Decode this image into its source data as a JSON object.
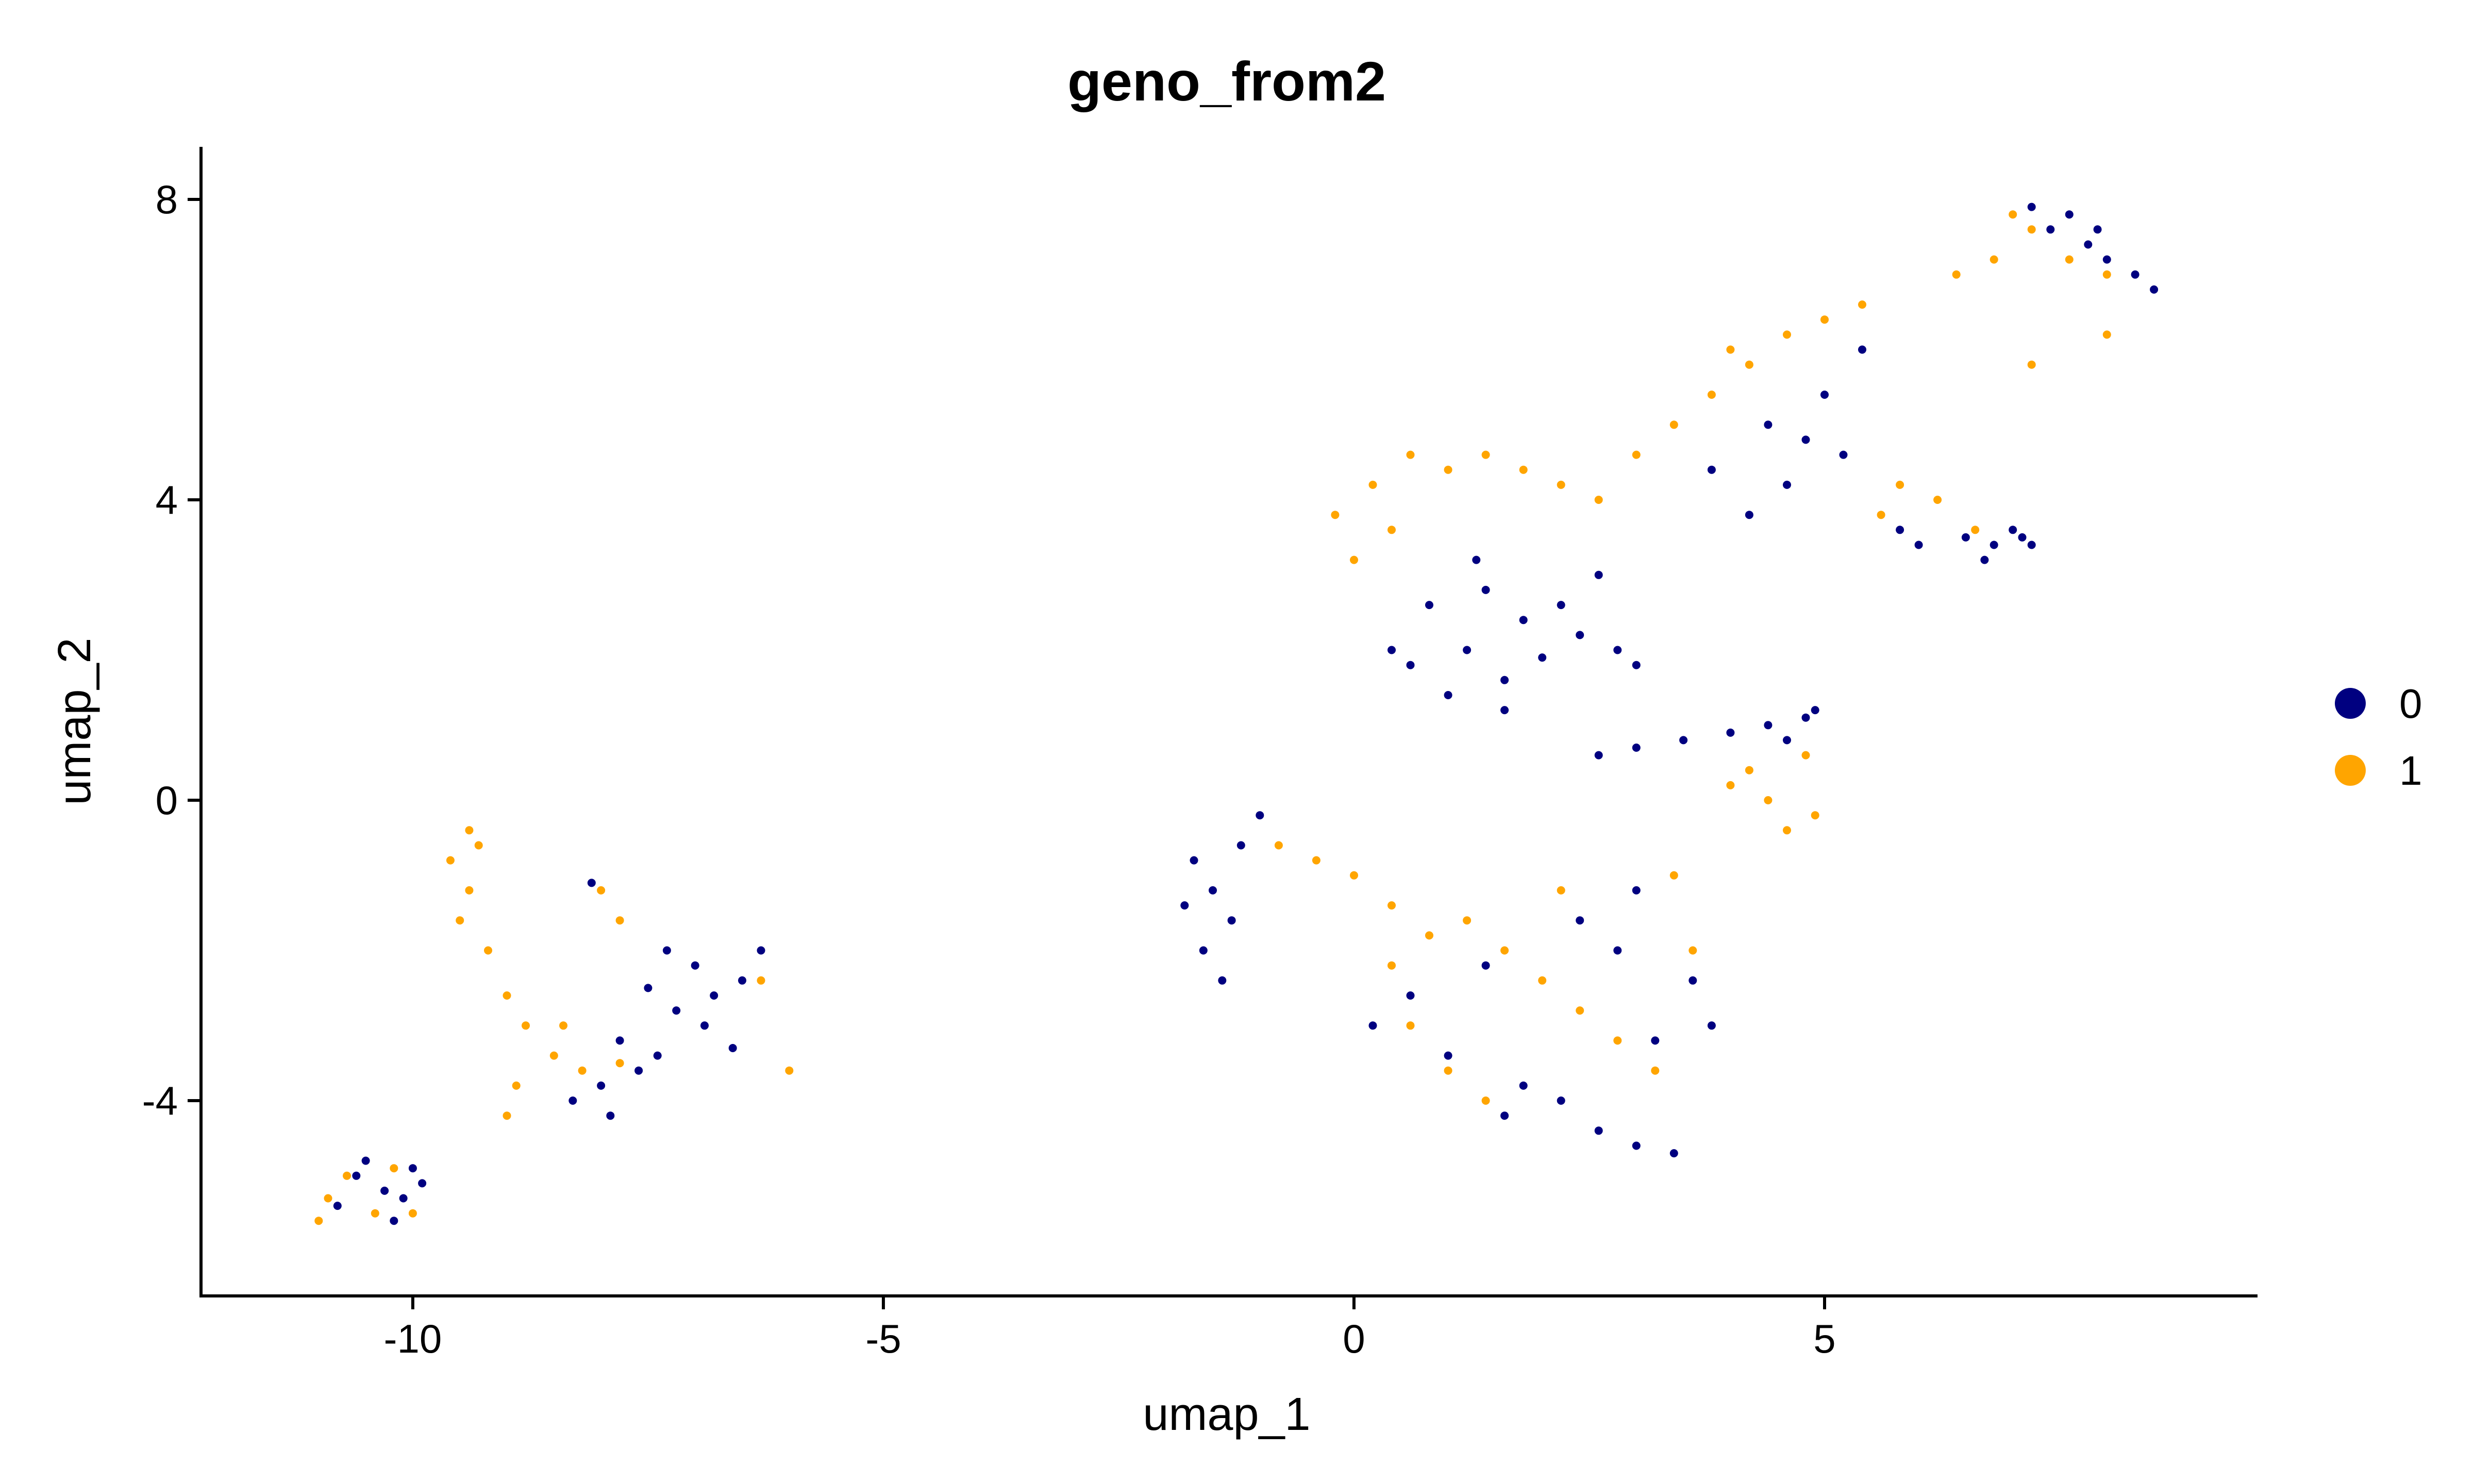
{
  "chart_data": {
    "type": "scatter",
    "title": "geno_from2",
    "xlabel": "umap_1",
    "ylabel": "umap_2",
    "xlim": [
      -12.25,
      9.6
    ],
    "ylim": [
      -6.6,
      8.7
    ],
    "xticks": [
      -10,
      -5,
      0,
      5
    ],
    "xtick_labels": [
      "-10",
      "-5",
      "0",
      "5"
    ],
    "yticks": [
      -4,
      0,
      4,
      8
    ],
    "ytick_labels": [
      "-4",
      "0",
      "4",
      "8"
    ],
    "grid": false,
    "legend_position": "right",
    "series": [
      {
        "name": "0",
        "color": "#000080",
        "points": [
          [
            -10.6,
            -5.0
          ],
          [
            -10.3,
            -5.2
          ],
          [
            -10.0,
            -4.9
          ],
          [
            -10.8,
            -5.4
          ],
          [
            -10.2,
            -5.6
          ],
          [
            -9.9,
            -5.1
          ],
          [
            -10.5,
            -4.8
          ],
          [
            -10.1,
            -5.3
          ],
          [
            -7.5,
            -2.5
          ],
          [
            -7.2,
            -2.8
          ],
          [
            -7.8,
            -3.2
          ],
          [
            -7.0,
            -2.2
          ],
          [
            -6.8,
            -2.6
          ],
          [
            -6.5,
            -2.4
          ],
          [
            -6.3,
            -2.0
          ],
          [
            -7.6,
            -3.6
          ],
          [
            -8.0,
            -3.8
          ],
          [
            -8.3,
            -4.0
          ],
          [
            -7.9,
            -4.2
          ],
          [
            -7.4,
            -3.4
          ],
          [
            -6.9,
            -3.0
          ],
          [
            -6.6,
            -3.3
          ],
          [
            -7.3,
            -2.0
          ],
          [
            -8.1,
            -1.1
          ],
          [
            -1.5,
            -1.2
          ],
          [
            -1.7,
            -0.8
          ],
          [
            -1.3,
            -1.6
          ],
          [
            -1.6,
            -2.0
          ],
          [
            -1.2,
            -0.6
          ],
          [
            -1.0,
            -0.2
          ],
          [
            -1.8,
            -1.4
          ],
          [
            -1.4,
            -2.4
          ],
          [
            0.2,
            -3.0
          ],
          [
            0.6,
            -2.6
          ],
          [
            1.0,
            -3.4
          ],
          [
            1.4,
            -2.2
          ],
          [
            1.8,
            -3.8
          ],
          [
            2.2,
            -4.0
          ],
          [
            2.6,
            -4.4
          ],
          [
            3.0,
            -4.6
          ],
          [
            3.4,
            -4.7
          ],
          [
            3.2,
            -3.2
          ],
          [
            3.6,
            -2.4
          ],
          [
            3.8,
            -3.0
          ],
          [
            2.8,
            -2.0
          ],
          [
            2.4,
            -1.6
          ],
          [
            3.0,
            -1.2
          ],
          [
            1.6,
            -4.2
          ],
          [
            0.8,
            2.6
          ],
          [
            1.2,
            2.0
          ],
          [
            1.6,
            1.6
          ],
          [
            2.0,
            1.9
          ],
          [
            2.4,
            2.2
          ],
          [
            0.4,
            2.0
          ],
          [
            1.0,
            1.4
          ],
          [
            2.8,
            2.0
          ],
          [
            1.4,
            2.8
          ],
          [
            2.2,
            2.6
          ],
          [
            3.0,
            1.8
          ],
          [
            0.6,
            1.8
          ],
          [
            1.8,
            2.4
          ],
          [
            1.3,
            3.2
          ],
          [
            2.6,
            3.0
          ],
          [
            1.6,
            1.2
          ],
          [
            3.0,
            0.7
          ],
          [
            3.5,
            0.8
          ],
          [
            4.0,
            0.9
          ],
          [
            4.4,
            1.0
          ],
          [
            4.8,
            1.1
          ],
          [
            4.9,
            1.2
          ],
          [
            4.6,
            0.8
          ],
          [
            2.6,
            0.6
          ],
          [
            4.2,
            3.8
          ],
          [
            4.6,
            4.2
          ],
          [
            4.8,
            4.8
          ],
          [
            4.4,
            5.0
          ],
          [
            5.0,
            5.4
          ],
          [
            5.2,
            4.6
          ],
          [
            3.8,
            4.4
          ],
          [
            5.4,
            6.0
          ],
          [
            6.5,
            3.5
          ],
          [
            6.8,
            3.4
          ],
          [
            7.0,
            3.6
          ],
          [
            6.7,
            3.2
          ],
          [
            7.1,
            3.5
          ],
          [
            5.8,
            3.6
          ],
          [
            6.0,
            3.4
          ],
          [
            7.2,
            3.4
          ],
          [
            7.4,
            7.6
          ],
          [
            7.8,
            7.4
          ],
          [
            8.0,
            7.2
          ],
          [
            7.6,
            7.8
          ],
          [
            8.3,
            7.0
          ],
          [
            8.5,
            6.8
          ],
          [
            7.2,
            7.9
          ],
          [
            7.9,
            7.6
          ]
        ]
      },
      {
        "name": "1",
        "color": "#FFA500",
        "points": [
          [
            -10.9,
            -5.3
          ],
          [
            -10.4,
            -5.5
          ],
          [
            -10.7,
            -5.0
          ],
          [
            -10.0,
            -5.5
          ],
          [
            -11.0,
            -5.6
          ],
          [
            -10.2,
            -4.9
          ],
          [
            -9.6,
            -0.8
          ],
          [
            -9.4,
            -1.2
          ],
          [
            -9.3,
            -0.6
          ],
          [
            -9.5,
            -1.6
          ],
          [
            -9.2,
            -2.0
          ],
          [
            -9.0,
            -2.6
          ],
          [
            -8.8,
            -3.0
          ],
          [
            -8.5,
            -3.4
          ],
          [
            -8.4,
            -3.0
          ],
          [
            -8.2,
            -3.6
          ],
          [
            -8.9,
            -3.8
          ],
          [
            -7.8,
            -3.5
          ],
          [
            -8.0,
            -1.2
          ],
          [
            -7.8,
            -1.6
          ],
          [
            -9.4,
            -0.4
          ],
          [
            -9.0,
            -4.2
          ],
          [
            -6.3,
            -2.4
          ],
          [
            -6.0,
            -3.6
          ],
          [
            -0.8,
            -0.6
          ],
          [
            -0.4,
            -0.8
          ],
          [
            0.0,
            -1.0
          ],
          [
            0.4,
            -1.4
          ],
          [
            0.8,
            -1.8
          ],
          [
            1.2,
            -1.6
          ],
          [
            1.6,
            -2.0
          ],
          [
            2.0,
            -2.4
          ],
          [
            2.4,
            -2.8
          ],
          [
            2.8,
            -3.2
          ],
          [
            3.2,
            -3.6
          ],
          [
            3.6,
            -2.0
          ],
          [
            3.4,
            -1.0
          ],
          [
            0.6,
            -3.0
          ],
          [
            1.0,
            -3.6
          ],
          [
            1.4,
            -4.0
          ],
          [
            0.4,
            -2.2
          ],
          [
            2.2,
            -1.2
          ],
          [
            0.2,
            4.2
          ],
          [
            0.6,
            4.6
          ],
          [
            1.0,
            4.4
          ],
          [
            1.4,
            4.6
          ],
          [
            1.8,
            4.4
          ],
          [
            2.2,
            4.2
          ],
          [
            2.6,
            4.0
          ],
          [
            0.4,
            3.6
          ],
          [
            0.0,
            3.2
          ],
          [
            -0.2,
            3.8
          ],
          [
            3.0,
            4.6
          ],
          [
            3.4,
            5.0
          ],
          [
            3.8,
            5.4
          ],
          [
            4.2,
            5.8
          ],
          [
            4.6,
            6.2
          ],
          [
            5.0,
            6.4
          ],
          [
            5.4,
            6.6
          ],
          [
            4.0,
            6.0
          ],
          [
            4.2,
            0.4
          ],
          [
            4.4,
            0.0
          ],
          [
            4.6,
            -0.4
          ],
          [
            4.8,
            0.6
          ],
          [
            4.9,
            -0.2
          ],
          [
            4.0,
            0.2
          ],
          [
            6.4,
            7.0
          ],
          [
            6.8,
            7.2
          ],
          [
            7.2,
            7.6
          ],
          [
            7.6,
            7.2
          ],
          [
            8.0,
            7.0
          ],
          [
            7.0,
            7.8
          ],
          [
            6.2,
            4.0
          ],
          [
            5.6,
            3.8
          ],
          [
            5.8,
            4.2
          ],
          [
            6.6,
            3.6
          ],
          [
            7.2,
            5.8
          ],
          [
            8.0,
            6.2
          ]
        ]
      }
    ]
  }
}
